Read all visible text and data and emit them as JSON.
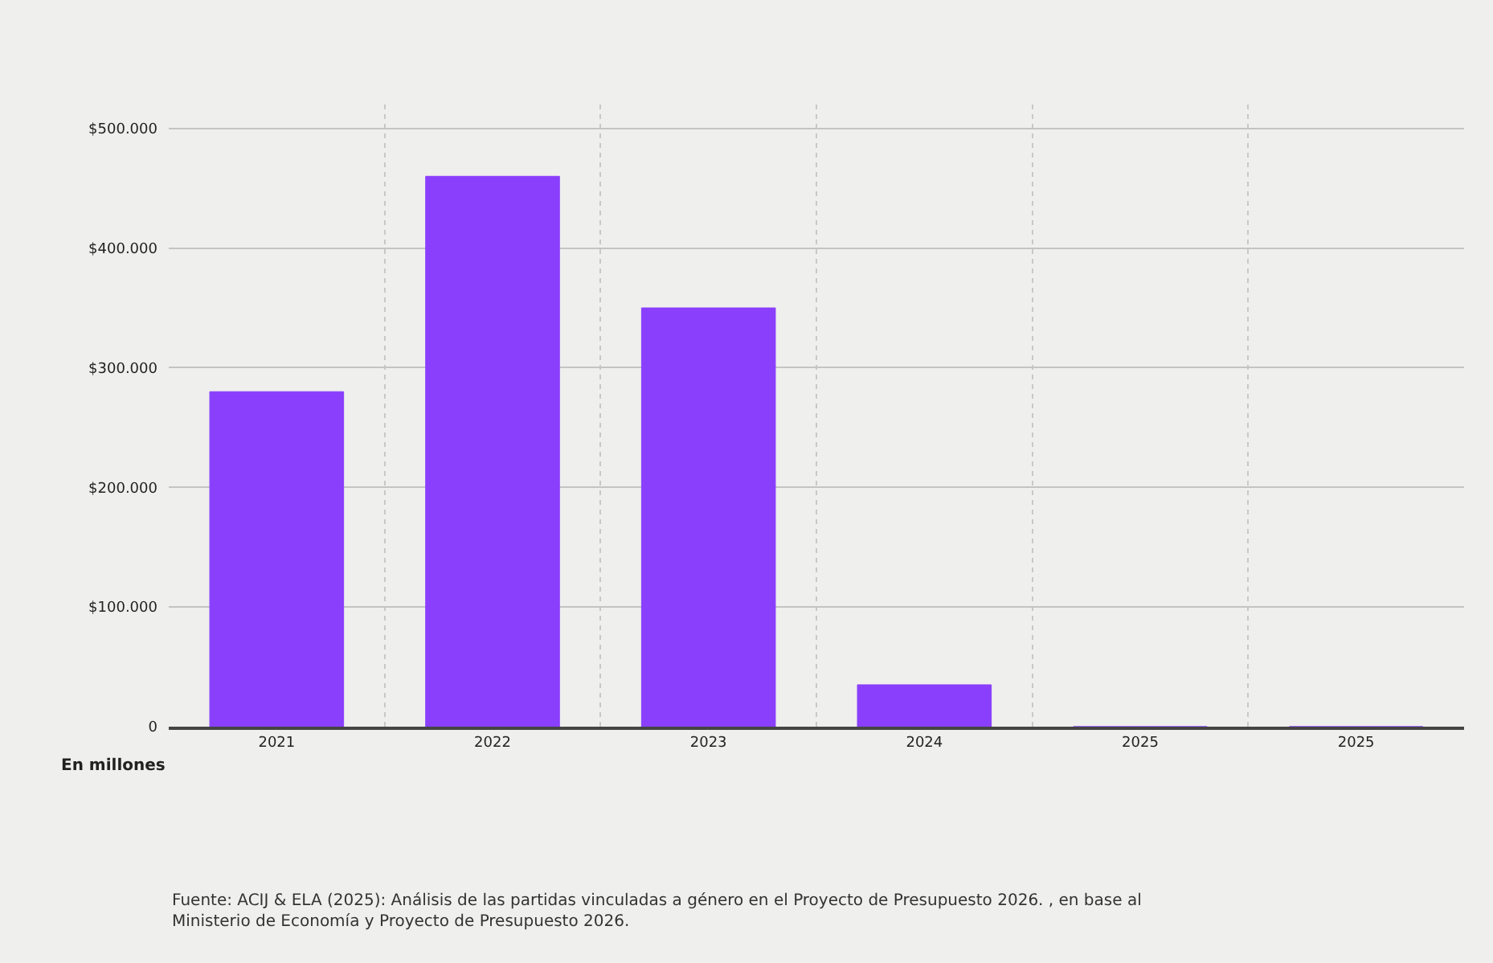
{
  "chart_data": {
    "type": "bar",
    "categories": [
      "2021",
      "2022",
      "2023",
      "2024",
      "2025",
      "2025"
    ],
    "values": [
      280000,
      460000,
      350000,
      35000,
      0,
      0
    ],
    "color": "#8a3ffc",
    "ylim": [
      0,
      520000
    ],
    "yticks": [
      {
        "value": 0,
        "label": "0"
      },
      {
        "value": 100000,
        "label": "$100.000"
      },
      {
        "value": 200000,
        "label": "$200.000"
      },
      {
        "value": 300000,
        "label": "$300.000"
      },
      {
        "value": 400000,
        "label": "$400.000"
      },
      {
        "value": 500000,
        "label": "$500.000"
      }
    ],
    "grid": true,
    "annotations": [
      "En millones",
      "Fuente: ACIJ & ELA (2025): Análisis de las partidas vinculadas a género en el Proyecto de Presupuesto 2026. , en base al Ministerio de Economía y Proyecto de Presupuesto 2026."
    ]
  }
}
